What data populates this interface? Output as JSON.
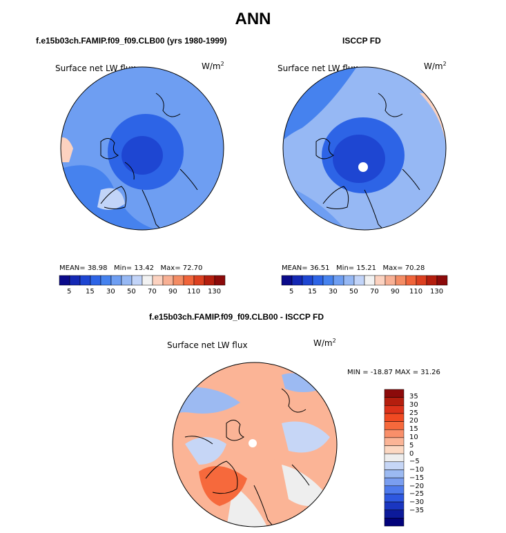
{
  "main_title": "ANN",
  "panels": [
    {
      "title": "f.e15b03ch.FAMIP.f09_f09.CLB00 (yrs 1980-1999)",
      "variable": "Surface net LW flux",
      "units_base": "W/m",
      "units_exp": "2",
      "mean_label": "MEAN=",
      "mean": "38.98",
      "min_label": "Min=",
      "min": "13.42",
      "max_label": "Max=",
      "max": "72.70"
    },
    {
      "title": "ISCCP FD",
      "variable": "Surface net LW flux",
      "units_base": "W/m",
      "units_exp": "2",
      "mean_label": "MEAN=",
      "mean": "36.51",
      "min_label": "Min=",
      "min": "15.21",
      "max_label": "Max=",
      "max": "70.28"
    },
    {
      "title": "f.e15b03ch.FAMIP.f09_f09.CLB00 - ISCCP FD",
      "variable": "Surface net LW flux",
      "units_base": "W/m",
      "units_exp": "2",
      "minmax_text": "MIN = -18.87 MAX =  31.26"
    }
  ],
  "colorbar_main": {
    "labels": [
      "5",
      "15",
      "30",
      "50",
      "70",
      "90",
      "110",
      "130"
    ],
    "colors": [
      "#0a0a8a",
      "#1428b4",
      "#1e46d2",
      "#2d64e6",
      "#4682ee",
      "#6e9ef2",
      "#96b8f4",
      "#c2d4f8",
      "#f2f2f2",
      "#fcd2c0",
      "#f8b094",
      "#f48c64",
      "#f0643a",
      "#dc4020",
      "#b41e0e",
      "#8c0a0a"
    ]
  },
  "colorbar_diff": {
    "labels": [
      "35",
      "30",
      "25",
      "20",
      "15",
      "10",
      "5",
      "0",
      "−5",
      "−10",
      "−15",
      "−20",
      "−25",
      "−30",
      "−35"
    ],
    "colors": [
      "#8c0a0a",
      "#b41e0e",
      "#dc321a",
      "#f04a22",
      "#f6693c",
      "#f98f6a",
      "#fbb496",
      "#fcd8c2",
      "#eeeeee",
      "#c6d6f6",
      "#9cbaf2",
      "#7a9ef0",
      "#4e7aec",
      "#2e58e0",
      "#1a36c0",
      "#0c1a9a",
      "#02027a"
    ]
  }
}
